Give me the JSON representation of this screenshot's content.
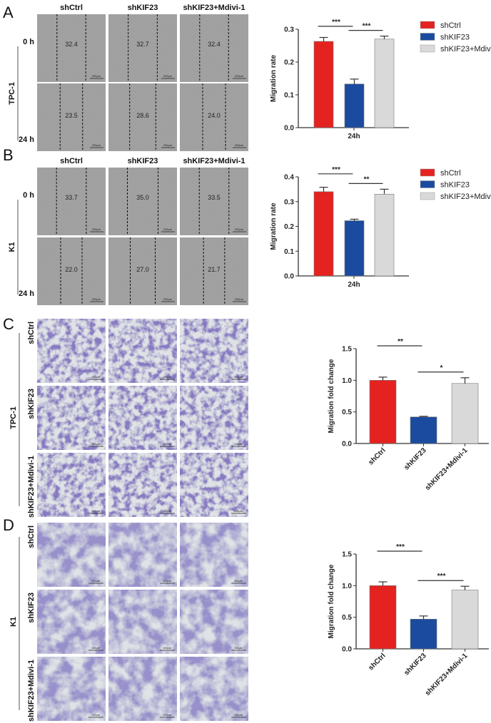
{
  "panels": {
    "A": {
      "label": "A",
      "cell_line": "TPC-1",
      "columns": [
        "shCtrl",
        "shKIF23",
        "shKIF23+Mdivi-1"
      ],
      "rows": [
        "0 h",
        "24 h"
      ],
      "widths": [
        [
          "32.4",
          "32.7",
          "32.4"
        ],
        [
          "23.5",
          "28.6",
          "24.0"
        ]
      ],
      "scale_bar": "200μm"
    },
    "B": {
      "label": "B",
      "cell_line": "K1",
      "columns": [
        "shCtrl",
        "shKIF23",
        "shKIF23+Mdivi-1"
      ],
      "rows": [
        "0 h",
        "24 h"
      ],
      "widths": [
        [
          "33.7",
          "35.0",
          "33.5"
        ],
        [
          "22.0",
          "27.0",
          "21.7"
        ]
      ],
      "scale_bar": "200μm"
    },
    "C": {
      "label": "C",
      "cell_line": "TPC-1",
      "rows": [
        "shCtrl",
        "shKIF23",
        "shKIF23+Mdivi-1"
      ],
      "scale_bar": "100μm"
    },
    "D": {
      "label": "D",
      "cell_line": "K1",
      "rows": [
        "shCtrl",
        "shKIF23",
        "shKIF23+Mdivi-1"
      ],
      "scale_bar": "100μm"
    }
  },
  "colors": {
    "shCtrl": "#e4221f",
    "shKIF23": "#1b4b9e",
    "shKIF23+Mdivi-1": "#d9d9d9",
    "wound": "#a6a6a6",
    "stain": "#6a5bb8"
  },
  "chart_data": [
    {
      "type": "bar",
      "panel": "A",
      "ylabel": "Migration rate",
      "xlabel": "24h",
      "ylim": [
        0,
        0.3
      ],
      "yticks": [
        "0.0",
        "0.1",
        "0.2",
        "0.3"
      ],
      "legend": "top-right",
      "categories": [
        "shCtrl",
        "shKIF23",
        "shKIF23+Mdivi-1"
      ],
      "values": [
        0.263,
        0.133,
        0.27
      ],
      "errors": [
        0.012,
        0.015,
        0.009
      ],
      "significance": [
        {
          "pair": [
            0,
            1
          ],
          "label": "***"
        },
        {
          "pair": [
            1,
            2
          ],
          "label": "***"
        }
      ]
    },
    {
      "type": "bar",
      "panel": "B",
      "ylabel": "Migration rate",
      "xlabel": "24h",
      "ylim": [
        0,
        0.4
      ],
      "yticks": [
        "0.0",
        "0.1",
        "0.2",
        "0.3",
        "0.4"
      ],
      "legend": "top-right",
      "categories": [
        "shCtrl",
        "shKIF23",
        "shKIF23+Mdivi-1"
      ],
      "values": [
        0.34,
        0.223,
        0.33
      ],
      "errors": [
        0.018,
        0.006,
        0.02
      ],
      "significance": [
        {
          "pair": [
            0,
            1
          ],
          "label": "***"
        },
        {
          "pair": [
            1,
            2
          ],
          "label": "**"
        }
      ]
    },
    {
      "type": "bar",
      "panel": "C",
      "ylabel": "Migration fold change",
      "ylim": [
        0,
        1.5
      ],
      "yticks": [
        "0.0",
        "0.5",
        "1.0",
        "1.5"
      ],
      "categories": [
        "shCtrl",
        "shKIF23",
        "shKIF23+Mdivi-1"
      ],
      "values": [
        1.0,
        0.42,
        0.95
      ],
      "errors": [
        0.05,
        0.01,
        0.09
      ],
      "significance": [
        {
          "pair": [
            0,
            1
          ],
          "label": "**"
        },
        {
          "pair": [
            1,
            2
          ],
          "label": "*"
        }
      ]
    },
    {
      "type": "bar",
      "panel": "D",
      "ylabel": "Migration fold change",
      "ylim": [
        0,
        1.5
      ],
      "yticks": [
        "0.0",
        "0.5",
        "1.0",
        "1.5"
      ],
      "categories": [
        "shCtrl",
        "shKIF23",
        "shKIF23+Mdivi-1"
      ],
      "values": [
        1.0,
        0.47,
        0.93
      ],
      "errors": [
        0.06,
        0.05,
        0.06
      ],
      "significance": [
        {
          "pair": [
            0,
            1
          ],
          "label": "***"
        },
        {
          "pair": [
            1,
            2
          ],
          "label": "***"
        }
      ]
    }
  ]
}
